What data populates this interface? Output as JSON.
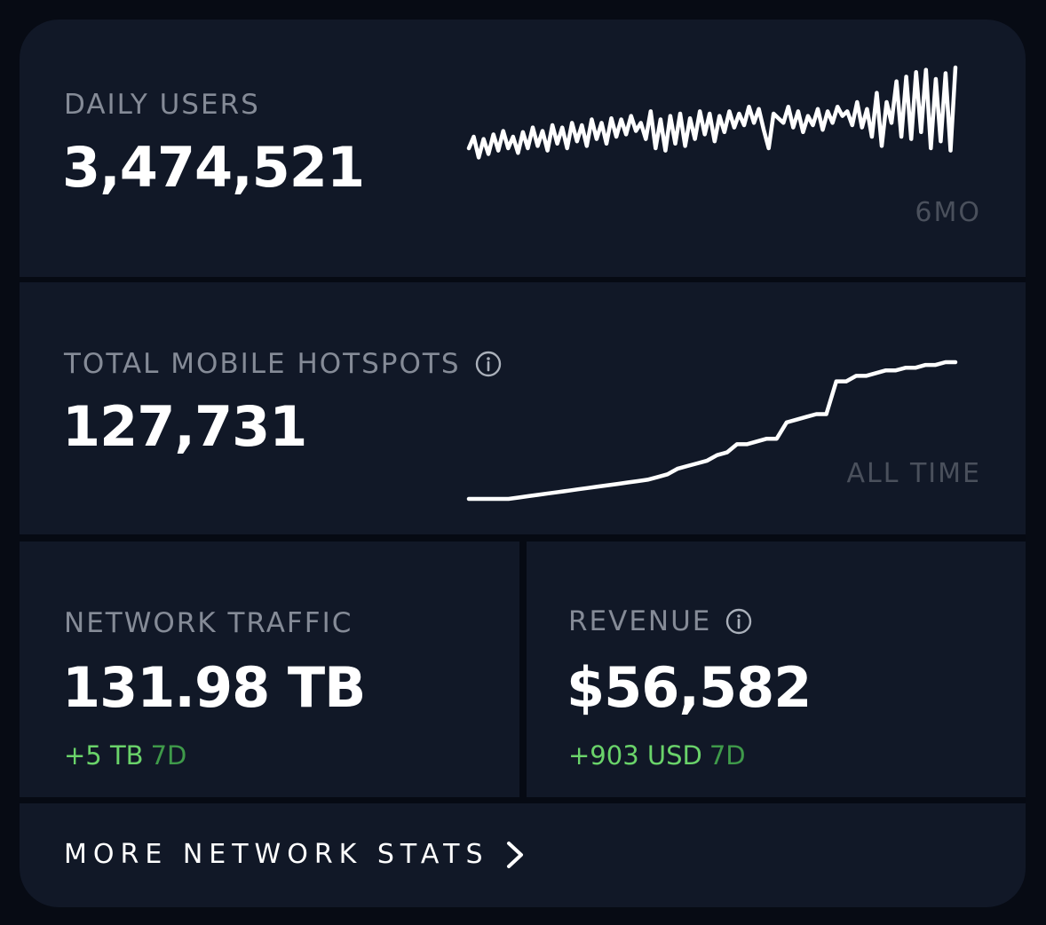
{
  "daily_users": {
    "label": "DAILY USERS",
    "value": "3,474,521",
    "timeframe": "6MO",
    "sparkline_shape": [
      30,
      40,
      22,
      38,
      25,
      42,
      28,
      45,
      30,
      40,
      26,
      44,
      30,
      48,
      32,
      45,
      28,
      50,
      34,
      48,
      30,
      52,
      36,
      50,
      32,
      55,
      38,
      52,
      34,
      56,
      40,
      55,
      42,
      58,
      45,
      52,
      38,
      62,
      30,
      55,
      28,
      58,
      34,
      60,
      32,
      56,
      38,
      62,
      42,
      60,
      36,
      58,
      44,
      62,
      48,
      60,
      50,
      66,
      52,
      64,
      46,
      30,
      60,
      56,
      52,
      66,
      48,
      62,
      44,
      58,
      50,
      64,
      46,
      62,
      52,
      66,
      58,
      62,
      50,
      70,
      48,
      64,
      40,
      78,
      32,
      70,
      52,
      88,
      40,
      92,
      38,
      96,
      44,
      98,
      30,
      90,
      36,
      95,
      28,
      100
    ]
  },
  "total_mobile_hotspots": {
    "label": "TOTAL MOBILE HOTSPOTS",
    "value": "127,731",
    "timeframe": "ALL TIME",
    "sparkline_shape": [
      0,
      0,
      0,
      0,
      0,
      1,
      2,
      3,
      4,
      5,
      6,
      7,
      8,
      9,
      10,
      11,
      12,
      13,
      14,
      16,
      18,
      22,
      24,
      26,
      28,
      32,
      34,
      40,
      40,
      42,
      44,
      44,
      56,
      58,
      60,
      62,
      62,
      86,
      86,
      90,
      90,
      92,
      94,
      94,
      96,
      96,
      98,
      98,
      100,
      100
    ]
  },
  "network_traffic": {
    "label": "NETWORK TRAFFIC",
    "value": "131.98 TB",
    "delta_amount": "+5 TB",
    "delta_period": "7D"
  },
  "revenue": {
    "label": "REVENUE",
    "value": "$56,582",
    "delta_amount": "+903 USD",
    "delta_period": "7D"
  },
  "more": {
    "label": "MORE NETWORK STATS"
  },
  "colors": {
    "panel": "#111827",
    "background": "#060a13",
    "positive": "#6ad36a",
    "positive_period": "#3f9a4a",
    "label": "#858b97",
    "muted": "#4a505c"
  },
  "icons": {
    "info": "info-circle-icon",
    "chevron": "chevron-right-icon"
  }
}
